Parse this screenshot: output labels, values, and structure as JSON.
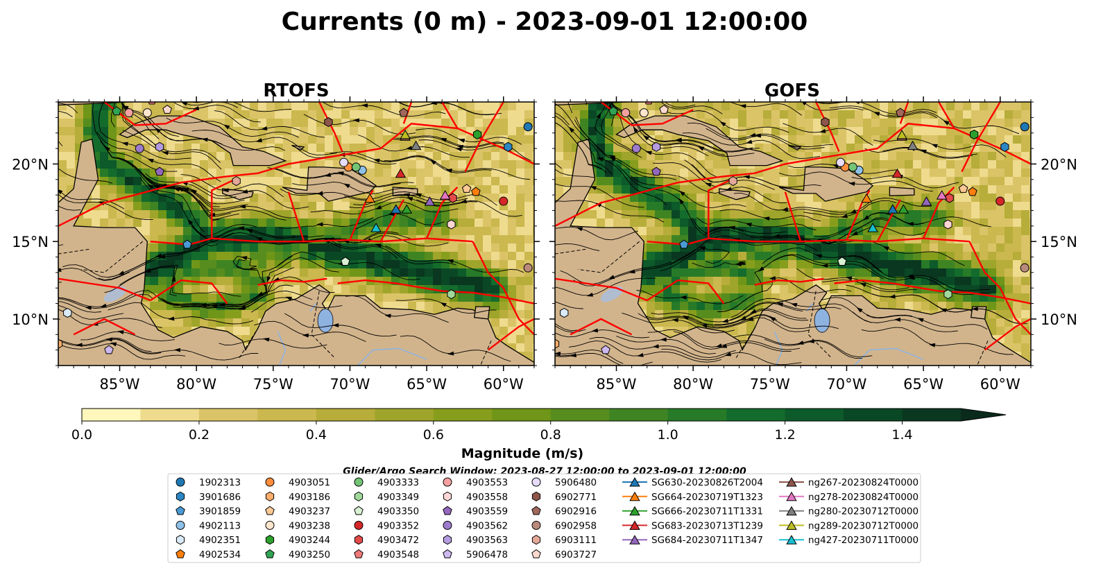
{
  "title": "Currents (0 m) - 2023-09-01 12:00:00",
  "chart_data": {
    "type": "map",
    "panels": [
      {
        "title": "RTOFS"
      },
      {
        "title": "GOFS"
      }
    ],
    "lon_range": [
      -89,
      -58
    ],
    "lat_range": [
      7,
      24
    ],
    "x_ticks": [
      {
        "value": -85,
        "label": "85°W"
      },
      {
        "value": -80,
        "label": "80°W"
      },
      {
        "value": -75,
        "label": "75°W"
      },
      {
        "value": -70,
        "label": "70°W"
      },
      {
        "value": -65,
        "label": "65°W"
      },
      {
        "value": -60,
        "label": "60°W"
      }
    ],
    "y_ticks": [
      {
        "value": 10,
        "label": "10°N"
      },
      {
        "value": 15,
        "label": "15°N"
      },
      {
        "value": 20,
        "label": "20°N"
      }
    ],
    "colorbar": {
      "label": "Magnitude (m/s)",
      "min": 0.0,
      "max": 1.5,
      "step": 0.1,
      "extend": "max",
      "ticks": [
        {
          "value": 0.0,
          "label": "0.0"
        },
        {
          "value": 0.2,
          "label": "0.2"
        },
        {
          "value": 0.4,
          "label": "0.4"
        },
        {
          "value": 0.6,
          "label": "0.6"
        },
        {
          "value": 0.8,
          "label": "0.8"
        },
        {
          "value": 1.0,
          "label": "1.0"
        },
        {
          "value": 1.2,
          "label": "1.2"
        },
        {
          "value": 1.4,
          "label": "1.4"
        }
      ],
      "colors": [
        "#fff7bc",
        "#eedb8e",
        "#dbc467",
        "#cbb84e",
        "#b7ad3a",
        "#9fa52a",
        "#879e1d",
        "#6f9618",
        "#578d1e",
        "#3f8423",
        "#277a27",
        "#146c2c",
        "#0d5a2a",
        "#0a4825",
        "#0a3720"
      ]
    },
    "search_window": "Glider/Argo Search Window: 2023-08-27 12:00:00 to 2023-09-01 12:00:00",
    "legend": {
      "columns": [
        [
          {
            "label": "1902313",
            "marker": "circle",
            "color": "#1f77b4"
          },
          {
            "label": "3901686",
            "marker": "hexagon",
            "color": "#2b86c4"
          },
          {
            "label": "3901859",
            "marker": "pentagon",
            "color": "#4a9ad4"
          },
          {
            "label": "4902113",
            "marker": "circle",
            "color": "#8ec1e8"
          },
          {
            "label": "4902351",
            "marker": "hexagon",
            "color": "#dbeaf7"
          },
          {
            "label": "4902534",
            "marker": "pentagon",
            "color": "#ff7f0e"
          }
        ],
        [
          {
            "label": "4903051",
            "marker": "circle",
            "color": "#fd8d3c"
          },
          {
            "label": "4903186",
            "marker": "hexagon",
            "color": "#fdae6b"
          },
          {
            "label": "4903237",
            "marker": "pentagon",
            "color": "#fdc995"
          },
          {
            "label": "4903238",
            "marker": "circle",
            "color": "#fee6ce"
          },
          {
            "label": "4903244",
            "marker": "hexagon",
            "color": "#2ca02c"
          },
          {
            "label": "4903250",
            "marker": "pentagon",
            "color": "#31a354"
          }
        ],
        [
          {
            "label": "4903333",
            "marker": "circle",
            "color": "#74c476"
          },
          {
            "label": "4903349",
            "marker": "hexagon",
            "color": "#a1d99b"
          },
          {
            "label": "4903350",
            "marker": "pentagon",
            "color": "#d9f0d3"
          },
          {
            "label": "4903352",
            "marker": "circle",
            "color": "#d62728"
          },
          {
            "label": "4903472",
            "marker": "hexagon",
            "color": "#e34a4a"
          },
          {
            "label": "4903548",
            "marker": "pentagon",
            "color": "#f07a7a"
          }
        ],
        [
          {
            "label": "4903553",
            "marker": "circle",
            "color": "#f4a0a0"
          },
          {
            "label": "4903558",
            "marker": "hexagon",
            "color": "#fcd5d5"
          },
          {
            "label": "4903559",
            "marker": "pentagon",
            "color": "#9467bd"
          },
          {
            "label": "4903562",
            "marker": "circle",
            "color": "#9e7bcc"
          },
          {
            "label": "4903563",
            "marker": "hexagon",
            "color": "#b59ce0"
          },
          {
            "label": "5906478",
            "marker": "pentagon",
            "color": "#cdb8f0"
          }
        ],
        [
          {
            "label": "5906480",
            "marker": "circle",
            "color": "#e8dcfb"
          },
          {
            "label": "6902771",
            "marker": "hexagon",
            "color": "#8c564b"
          },
          {
            "label": "6902916",
            "marker": "pentagon",
            "color": "#a0695c"
          },
          {
            "label": "6902958",
            "marker": "circle",
            "color": "#b98a7b"
          },
          {
            "label": "6903111",
            "marker": "hexagon",
            "color": "#e3a898"
          },
          {
            "label": "6903727",
            "marker": "pentagon",
            "color": "#fcd9cf"
          }
        ],
        [
          {
            "label": "SG630-20230826T2004",
            "marker": "triangle",
            "color": "#1f77b4"
          },
          {
            "label": "SG664-20230719T1323",
            "marker": "triangle",
            "color": "#ff7f0e"
          },
          {
            "label": "SG666-20230711T1331",
            "marker": "triangle",
            "color": "#2ca02c"
          },
          {
            "label": "SG683-20230713T1239",
            "marker": "triangle",
            "color": "#d62728"
          },
          {
            "label": "SG684-20230711T1347",
            "marker": "triangle",
            "color": "#9467bd"
          }
        ],
        [
          {
            "label": "ng267-20230824T0000",
            "marker": "triangle",
            "color": "#8c564b"
          },
          {
            "label": "ng278-20230824T0000",
            "marker": "triangle",
            "color": "#e377c2"
          },
          {
            "label": "ng280-20230712T0000",
            "marker": "triangle",
            "color": "#7f7f7f"
          },
          {
            "label": "ng289-20230712T0000",
            "marker": "triangle",
            "color": "#bcbd22"
          },
          {
            "label": "ng427-20230711T0000",
            "marker": "triangle",
            "color": "#17becf"
          }
        ]
      ]
    },
    "observations": [
      {
        "id": "1902313",
        "lon": -58.4,
        "lat": 22.4,
        "marker": "circle",
        "color": "#1f77b4"
      },
      {
        "id": "3901686",
        "lon": -59.7,
        "lat": 21.1,
        "marker": "hexagon",
        "color": "#2b86c4"
      },
      {
        "id": "3901859",
        "lon": -80.6,
        "lat": 14.8,
        "marker": "pentagon",
        "color": "#4a9ad4"
      },
      {
        "id": "4902113",
        "lon": -69.2,
        "lat": 19.6,
        "marker": "circle",
        "color": "#8ec1e8"
      },
      {
        "id": "4902351",
        "lon": -88.4,
        "lat": 10.4,
        "marker": "hexagon",
        "color": "#dbeaf7"
      },
      {
        "id": "4902534",
        "lon": -61.8,
        "lat": 18.2,
        "marker": "pentagon",
        "color": "#ff7f0e"
      },
      {
        "id": "4903051",
        "lon": -70.1,
        "lat": 19.8,
        "marker": "circle",
        "color": "#fd8d3c"
      },
      {
        "id": "4903186",
        "lon": -89.0,
        "lat": 8.4,
        "marker": "hexagon",
        "color": "#fdae6b"
      },
      {
        "id": "4903237",
        "lon": -62.4,
        "lat": 18.4,
        "marker": "pentagon",
        "color": "#fdc995"
      },
      {
        "id": "4903238",
        "lon": -83.2,
        "lat": 23.3,
        "marker": "circle",
        "color": "#fee6ce"
      },
      {
        "id": "4903244",
        "lon": -61.7,
        "lat": 21.9,
        "marker": "hexagon",
        "color": "#2ca02c"
      },
      {
        "id": "4903250",
        "lon": -85.2,
        "lat": 23.4,
        "marker": "pentagon",
        "color": "#31a354"
      },
      {
        "id": "4903333",
        "lon": -69.6,
        "lat": 19.8,
        "marker": "circle",
        "color": "#74c476"
      },
      {
        "id": "4903349",
        "lon": -63.4,
        "lat": 11.6,
        "marker": "hexagon",
        "color": "#a1d99b"
      },
      {
        "id": "4903350",
        "lon": -70.3,
        "lat": 13.7,
        "marker": "pentagon",
        "color": "#d9f0d3"
      },
      {
        "id": "4903352",
        "lon": -60.0,
        "lat": 17.6,
        "marker": "circle",
        "color": "#d62728"
      },
      {
        "id": "4903472",
        "lon": -63.3,
        "lat": 17.8,
        "marker": "hexagon",
        "color": "#e34a4a"
      },
      {
        "id": "4903548",
        "lon": -82.9,
        "lat": 24.1,
        "marker": "pentagon",
        "color": "#f07a7a"
      },
      {
        "id": "4903553",
        "lon": -84.4,
        "lat": 23.3,
        "marker": "circle",
        "color": "#f4a0a0"
      },
      {
        "id": "4903558",
        "lon": -63.4,
        "lat": 16.1,
        "marker": "hexagon",
        "color": "#fcd5d5"
      },
      {
        "id": "4903559",
        "lon": -82.4,
        "lat": 19.5,
        "marker": "pentagon",
        "color": "#9467bd"
      },
      {
        "id": "4903562",
        "lon": -83.7,
        "lat": 21.0,
        "marker": "circle",
        "color": "#9e7bcc"
      },
      {
        "id": "4903563",
        "lon": -82.4,
        "lat": 21.1,
        "marker": "hexagon",
        "color": "#b59ce0"
      },
      {
        "id": "5906478",
        "lon": -85.7,
        "lat": 8.0,
        "marker": "pentagon",
        "color": "#cdb8f0"
      },
      {
        "id": "5906480",
        "lon": -70.4,
        "lat": 20.1,
        "marker": "circle",
        "color": "#e8dcfb"
      },
      {
        "id": "6902771",
        "lon": -71.4,
        "lat": 22.7,
        "marker": "hexagon",
        "color": "#8c564b"
      },
      {
        "id": "6902916",
        "lon": -66.5,
        "lat": 23.3,
        "marker": "pentagon",
        "color": "#a0695c"
      },
      {
        "id": "6902958",
        "lon": -58.4,
        "lat": 13.3,
        "marker": "circle",
        "color": "#b98a7b"
      },
      {
        "id": "6903111",
        "lon": -77.4,
        "lat": 18.9,
        "marker": "hexagon",
        "color": "#e3a898"
      },
      {
        "id": "6903727",
        "lon": -81.9,
        "lat": 23.5,
        "marker": "pentagon",
        "color": "#fcd9cf"
      },
      {
        "id": "SG630-20230826T2004",
        "lon": -67.0,
        "lat": 17.1,
        "marker": "triangle",
        "color": "#1f77b4"
      },
      {
        "id": "SG664-20230719T1323",
        "lon": -68.7,
        "lat": 17.8,
        "marker": "triangle",
        "color": "#ff7f0e"
      },
      {
        "id": "SG666-20230711T1331",
        "lon": -66.3,
        "lat": 17.1,
        "marker": "triangle",
        "color": "#2ca02c"
      },
      {
        "id": "SG683-20230713T1239",
        "lon": -66.7,
        "lat": 19.4,
        "marker": "triangle",
        "color": "#d62728"
      },
      {
        "id": "SG684-20230711T1347",
        "lon": -64.8,
        "lat": 17.6,
        "marker": "triangle",
        "color": "#9467bd"
      },
      {
        "id": "ng267-20230824T0000",
        "lon": -66.4,
        "lat": 21.8,
        "marker": "triangle",
        "color": "#8c564b"
      },
      {
        "id": "ng278-20230824T0000",
        "lon": -63.8,
        "lat": 18.0,
        "marker": "triangle",
        "color": "#e377c2"
      },
      {
        "id": "ng280-20230712T0000",
        "lon": -65.7,
        "lat": 21.2,
        "marker": "triangle",
        "color": "#7f7f7f"
      },
      {
        "id": "ng289-20230712T0000",
        "lon": -66.4,
        "lat": 21.9,
        "marker": "triangle",
        "color": "#bcbd22"
      },
      {
        "id": "ng427-20230711T0000",
        "lon": -68.3,
        "lat": 15.9,
        "marker": "triangle",
        "color": "#17becf"
      }
    ],
    "land_color": "#d2b48c",
    "boundary_color": "#ff0000",
    "lake_color": "#8fb3e0"
  }
}
